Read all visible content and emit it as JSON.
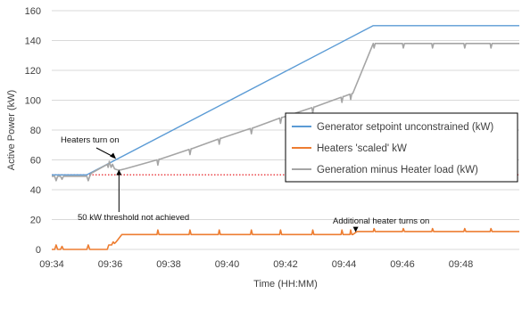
{
  "chart_data": {
    "type": "line",
    "xlabel": "Time (HH:MM)",
    "ylabel": "Active Power (kW)",
    "xlim": [
      "09:34",
      "09:50"
    ],
    "ylim": [
      0,
      160
    ],
    "x_ticks": [
      "09:34",
      "09:36",
      "09:38",
      "09:40",
      "09:42",
      "09:44",
      "09:46",
      "09:48"
    ],
    "y_ticks": [
      0,
      20,
      40,
      60,
      80,
      100,
      120,
      140,
      160
    ],
    "grid": "horizontal",
    "legend_position": "center-right",
    "series": [
      {
        "name": "Generator setpoint unconstrained (kW)",
        "color": "#5b9bd5",
        "x": [
          "09:34",
          "09:35.2",
          "09:45",
          "09:50"
        ],
        "y": [
          50,
          50,
          150,
          150
        ]
      },
      {
        "name": "Heaters 'scaled' kW",
        "color": "#ed7d31",
        "x": [
          "09:34",
          "09:34.1",
          "09:34.15",
          "09:34.2",
          "09:34.3",
          "09:34.35",
          "09:34.4",
          "09:35.2",
          "09:35.25",
          "09:35.3",
          "09:35.35",
          "09:35.9",
          "09:35.95",
          "09:36.05",
          "09:36.1",
          "09:36.15",
          "09:36.2",
          "09:36.4",
          "09:37.6",
          "09:37.63",
          "09:37.67",
          "09:37.7",
          "09:38.7",
          "09:38.73",
          "09:38.77",
          "09:38.8",
          "09:39.7",
          "09:39.73",
          "09:39.77",
          "09:39.8",
          "09:40.8",
          "09:40.83",
          "09:40.87",
          "09:40.9",
          "09:41.8",
          "09:41.83",
          "09:41.87",
          "09:41.9",
          "09:42.9",
          "09:42.93",
          "09:42.97",
          "09:43",
          "09:43.9",
          "09:43.93",
          "09:43.97",
          "09:44",
          "09:44.2",
          "09:44.23",
          "09:44.27",
          "09:44.3",
          "09:44.45",
          "09:45",
          "09:45.03",
          "09:45.07",
          "09:45.1",
          "09:46",
          "09:46.03",
          "09:46.07",
          "09:46.1",
          "09:47",
          "09:47.03",
          "09:47.07",
          "09:47.1",
          "09:48.1",
          "09:48.13",
          "09:48.17",
          "09:48.2",
          "09:49",
          "09:49.03",
          "09:49.07",
          "09:49.1",
          "09:50"
        ],
        "y": [
          0,
          0,
          3,
          0,
          0,
          2,
          0,
          0,
          3,
          0,
          0,
          0,
          3,
          3,
          5,
          4,
          5,
          10,
          10,
          13,
          10,
          10,
          10,
          13,
          10,
          10,
          10,
          13,
          10,
          10,
          10,
          13,
          10,
          10,
          10,
          13,
          10,
          10,
          10,
          13,
          10,
          10,
          10,
          13,
          10,
          10,
          10,
          13,
          10,
          10,
          12,
          12,
          14,
          12,
          12,
          12,
          14,
          12,
          12,
          12,
          14,
          12,
          12,
          12,
          14,
          12,
          12,
          12,
          14,
          12,
          12,
          12
        ]
      },
      {
        "name": "Generation minus Heater load (kW)",
        "color": "#a5a5a5",
        "x": [
          "09:34",
          "09:34.1",
          "09:34.15",
          "09:34.2",
          "09:34.3",
          "09:34.35",
          "09:34.4",
          "09:35.2",
          "09:35.25",
          "09:35.3",
          "09:35.35",
          "09:35.9",
          "09:35.93",
          "09:35.97",
          "09:36.03",
          "09:36.08",
          "09:36.15",
          "09:36.3",
          "09:36.5",
          "09:37.6",
          "09:37.63",
          "09:37.67",
          "09:37.7",
          "09:38.7",
          "09:38.73",
          "09:38.77",
          "09:38.8",
          "09:39.7",
          "09:39.73",
          "09:39.77",
          "09:39.8",
          "09:40.8",
          "09:40.83",
          "09:40.87",
          "09:40.9",
          "09:41.8",
          "09:41.83",
          "09:41.87",
          "09:41.9",
          "09:42.9",
          "09:42.93",
          "09:42.97",
          "09:43",
          "09:43.9",
          "09:43.93",
          "09:43.97",
          "09:44",
          "09:44.2",
          "09:44.23",
          "09:44.27",
          "09:44.3",
          "09:45",
          "09:45.03",
          "09:45.07",
          "09:45.1",
          "09:46",
          "09:46.03",
          "09:46.07",
          "09:46.1",
          "09:47",
          "09:47.03",
          "09:47.07",
          "09:47.1",
          "09:48.1",
          "09:48.13",
          "09:48.17",
          "09:48.2",
          "09:49",
          "09:49.03",
          "09:49.07",
          "09:49.1",
          "09:50"
        ],
        "y": [
          49,
          49,
          46,
          49,
          49,
          47,
          49,
          49,
          46,
          49,
          51,
          57,
          55,
          59,
          55,
          57,
          54,
          53,
          54,
          60,
          56.5,
          60.5,
          60.5,
          67,
          63.5,
          67.5,
          67.5,
          74,
          70.5,
          74.5,
          74.5,
          81,
          77.5,
          81.5,
          81.5,
          88,
          84.5,
          88.5,
          88.5,
          95,
          91.5,
          95.5,
          95.5,
          102,
          98.5,
          102.5,
          102.5,
          104,
          100.5,
          104.5,
          104.5,
          138,
          135,
          138,
          138,
          138,
          135,
          138,
          138,
          138,
          135,
          138,
          138,
          138,
          135,
          138,
          138,
          138,
          135,
          138,
          138,
          138
        ]
      }
    ],
    "threshold_line": {
      "value": 50,
      "color": "#e8242a",
      "style": "dotted"
    },
    "annotations": [
      {
        "text": "Heaters turn on",
        "x": "09:36.2",
        "y": 60
      },
      {
        "text": "50 kW threshold not achieved",
        "x": "09:36.3",
        "y": 54
      },
      {
        "text": "Additional heater turns on",
        "x": "09:44.4",
        "y": 11
      }
    ]
  }
}
